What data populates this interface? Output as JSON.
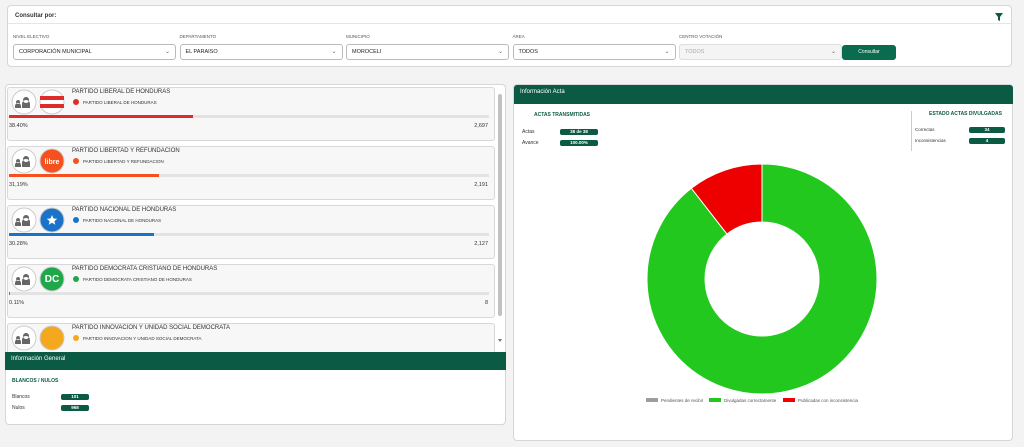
{
  "filters": {
    "title": "Consultar por:",
    "fields": [
      {
        "label": "NIVEL ELECTIVO",
        "value": "CORPORACIÓN MUNICIPAL"
      },
      {
        "label": "DEPARTAMENTO",
        "value": "EL PARAISO"
      },
      {
        "label": "MUNICIPIO",
        "value": "MOROCELI"
      },
      {
        "label": "ÁREA",
        "value": "TODOS"
      },
      {
        "label": "CENTRO VOTACIÓN",
        "value": "TODOS",
        "disabled": true
      }
    ],
    "button": "Consultar"
  },
  "parties": [
    {
      "name": "PARTIDO LIBERAL DE HONDURAS",
      "subname": "PARTIDO LIBERAL DE HONDURAS",
      "color": "#e02b2b",
      "percent": {
        "value": 38.4,
        "label": "38.40%"
      },
      "votes": {
        "value": 2697,
        "label": "2,697"
      }
    },
    {
      "name": "PARTIDO LIBERTAD Y REFUNDACION",
      "subname": "PARTIDO LIBERTAD Y REFUNDACION",
      "color": "#f4511e",
      "logo_text": "libre",
      "percent": {
        "value": 31.19,
        "label": "31,19%"
      },
      "votes": {
        "value": 2191,
        "label": "2,191"
      }
    },
    {
      "name": "PARTIDO NACIONAL DE HONDURAS",
      "subname": "PARTIDO NACIONAL DE HONDURAS",
      "color": "#1a73c8",
      "percent": {
        "value": 30.28,
        "label": "30.28%"
      },
      "votes": {
        "value": 2127,
        "label": "2,127"
      }
    },
    {
      "name": "PARTIDO DEMOCRATA CRISTIANO DE HONDURAS",
      "subname": "PARTIDO DEMOCRATA CRISTIANO DE HONDURAS",
      "color": "#1fa84a",
      "logo_text": "DC",
      "percent": {
        "value": 0.11,
        "label": "0.11%"
      },
      "votes": 8
    },
    {
      "name": "PARTIDO INNOVACION Y UNIDAD SOCIAL DEMOCRATA",
      "subname": "PARTIDO INNOVACION Y UNIDAD SOCIAL DEMOCRATA",
      "color": "#f4a81e"
    }
  ],
  "general": {
    "title": "Información General",
    "subtitle": "BLANCOS / NULOS",
    "rows": [
      {
        "label": "Blancos",
        "value": 101
      },
      {
        "label": "Nulos",
        "value": 968
      }
    ]
  },
  "acta": {
    "title": "Información Acta",
    "transmitidas": {
      "title": "ACTAS TRANSMITIDAS",
      "rows": [
        {
          "label": "Actas",
          "value": "38 de 38"
        },
        {
          "label": "Avance",
          "value": "100.00%"
        }
      ]
    },
    "estado": {
      "title": "ESTADO ACTAS DIVULGADAS",
      "rows": [
        {
          "label": "Correctas"
        },
        {
          "label": "Inconsistencias"
        }
      ]
    },
    "chart": {
      "type": "pie",
      "categories": [
        "Pendientes de recibir",
        "Divulgadas correctamente",
        "Publicadas con inconsistencia"
      ],
      "colors": [
        "#9e9e9e",
        "#22c81e",
        "#ee0000"
      ],
      "values": [
        0,
        34,
        4
      ]
    }
  }
}
